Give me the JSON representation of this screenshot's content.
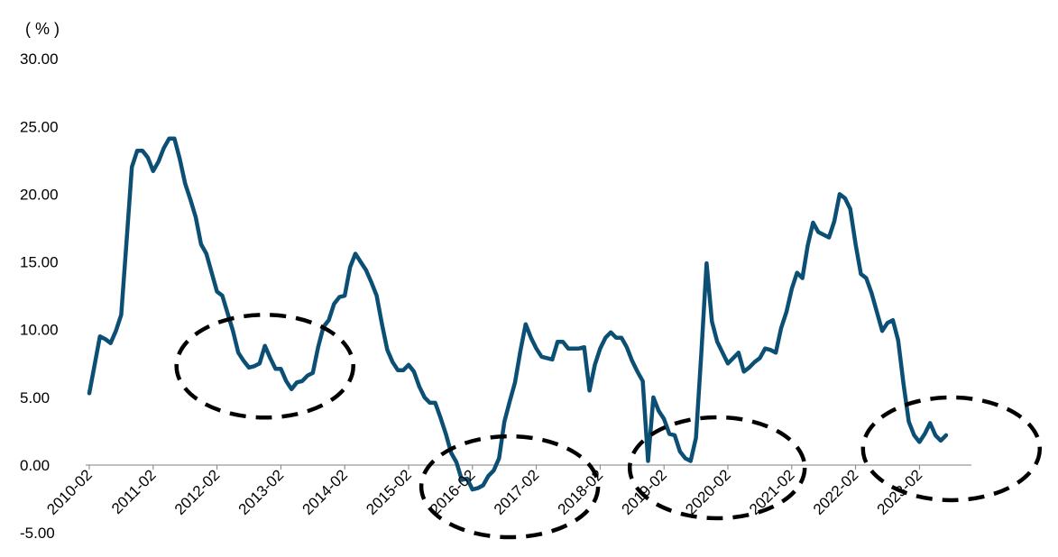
{
  "chart_data": {
    "type": "line",
    "unit_label": "( % )",
    "title": "",
    "xlabel": "",
    "ylabel": "",
    "ylim": [
      -5,
      30
    ],
    "y_ticks": [
      "30.00",
      "25.00",
      "20.00",
      "15.00",
      "10.00",
      "5.00",
      "0.00",
      "-5.00"
    ],
    "y_tick_values": [
      30,
      25,
      20,
      15,
      10,
      5,
      0,
      -5
    ],
    "x_ticks": [
      "2010-02",
      "2011-02",
      "2012-02",
      "2013-02",
      "2014-02",
      "2015-02",
      "2016-02",
      "2017-02",
      "2018-02",
      "2019-02",
      "2020-02",
      "2021-02",
      "2022-02",
      "2023-02"
    ],
    "x_tick_index": [
      0,
      12,
      24,
      36,
      48,
      60,
      72,
      84,
      96,
      108,
      120,
      132,
      144,
      156
    ],
    "grid": false,
    "line_color": "#0b4f74",
    "series": [
      {
        "x_start": "2010-02",
        "frequency": "monthly",
        "values": [
          5.3,
          7.4,
          9.5,
          9.3,
          9.0,
          9.9,
          11.1,
          16.5,
          22.0,
          23.2,
          23.2,
          22.7,
          21.7,
          22.4,
          23.4,
          24.1,
          24.1,
          22.6,
          20.8,
          19.6,
          18.3,
          16.3,
          15.6,
          14.2,
          12.8,
          12.5,
          11.2,
          9.9,
          8.3,
          7.7,
          7.2,
          7.3,
          7.5,
          8.8,
          7.9,
          7.1,
          7.1,
          6.2,
          5.6,
          6.1,
          6.2,
          6.6,
          6.8,
          8.7,
          10.2,
          10.7,
          11.9,
          12.4,
          12.5,
          14.6,
          15.6,
          15.0,
          14.4,
          13.5,
          12.5,
          10.4,
          8.5,
          7.6,
          7.0,
          7.0,
          7.4,
          6.9,
          5.8,
          5.0,
          4.6,
          4.6,
          3.5,
          2.3,
          0.9,
          0.2,
          -1.1,
          -1.0,
          -1.8,
          -1.7,
          -1.5,
          -0.8,
          -0.4,
          0.5,
          3.2,
          4.7,
          6.1,
          8.4,
          10.4,
          9.4,
          8.6,
          8.0,
          7.9,
          7.8,
          9.1,
          9.1,
          8.6,
          8.6,
          8.6,
          8.7,
          5.5,
          7.4,
          8.6,
          9.4,
          9.8,
          9.4,
          9.4,
          8.7,
          7.7,
          6.9,
          6.2,
          0.3,
          5.0,
          4.0,
          3.4,
          2.3,
          2.2,
          1.0,
          0.5,
          0.3,
          2.0,
          8.2,
          14.9,
          10.6,
          9.1,
          8.3,
          7.5,
          7.9,
          8.3,
          6.9,
          7.2,
          7.6,
          7.9,
          8.6,
          8.5,
          8.3,
          10.1,
          11.3,
          13.0,
          14.2,
          13.8,
          16.2,
          17.9,
          17.2,
          17.0,
          16.8,
          18.0,
          20.0,
          19.7,
          18.9,
          16.3,
          14.1,
          13.8,
          12.7,
          11.3,
          9.9,
          10.5,
          10.7,
          9.2,
          6.0,
          3.2,
          2.2,
          1.7,
          2.3,
          3.1,
          2.2,
          1.8,
          2.2
        ]
      }
    ],
    "annotations": [
      {
        "type": "dashed-ellipse",
        "center_index": 33,
        "center_value": 7.3
      },
      {
        "type": "dashed-ellipse",
        "center_index": 79,
        "center_value": -1.6
      },
      {
        "type": "dashed-ellipse",
        "center_index": 118,
        "center_value": -0.2
      },
      {
        "type": "dashed-ellipse",
        "center_index": 162,
        "center_value": 1.2
      }
    ]
  }
}
